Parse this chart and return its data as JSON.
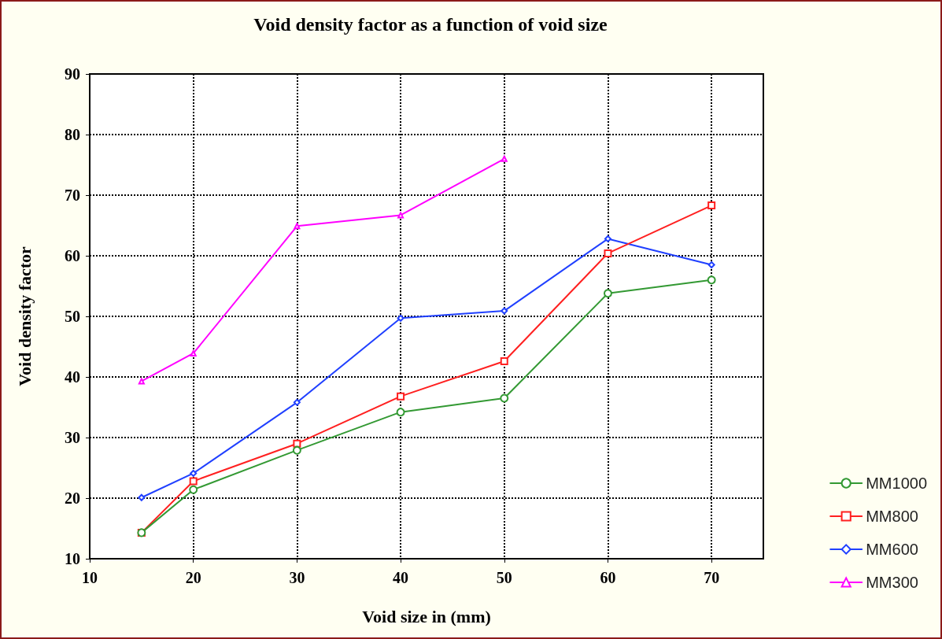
{
  "chart_data": {
    "type": "line",
    "title": "Void density factor as a function of void size",
    "xlabel": "Void size in (mm)",
    "ylabel": "Void density factor",
    "x": [
      15,
      20,
      30,
      40,
      50,
      60,
      70
    ],
    "series": [
      {
        "name": "MM1000",
        "color": "#339933",
        "marker": "circle",
        "values": [
          14.3,
          21.4,
          27.9,
          34.2,
          36.5,
          53.8,
          56.0
        ]
      },
      {
        "name": "MM800",
        "color": "#ff2020",
        "marker": "square",
        "values": [
          14.3,
          22.8,
          29.0,
          36.8,
          42.6,
          60.4,
          68.3
        ]
      },
      {
        "name": "MM600",
        "color": "#2040ff",
        "marker": "diamond",
        "values": [
          20.1,
          24.1,
          35.8,
          49.7,
          50.9,
          62.8,
          58.5
        ]
      },
      {
        "name": "MM300",
        "color": "#ff00ff",
        "marker": "triangle",
        "values": [
          39.3,
          43.9,
          64.9,
          66.7,
          76.0,
          null,
          null
        ]
      }
    ],
    "xlim": [
      10,
      75
    ],
    "xticks": [
      10,
      20,
      30,
      40,
      50,
      60,
      70
    ],
    "ylim": [
      10,
      90
    ],
    "yticks": [
      10,
      20,
      30,
      40,
      50,
      60,
      70,
      80,
      90
    ],
    "grid": true,
    "legend": "bottom right",
    "line_style": "solid"
  }
}
